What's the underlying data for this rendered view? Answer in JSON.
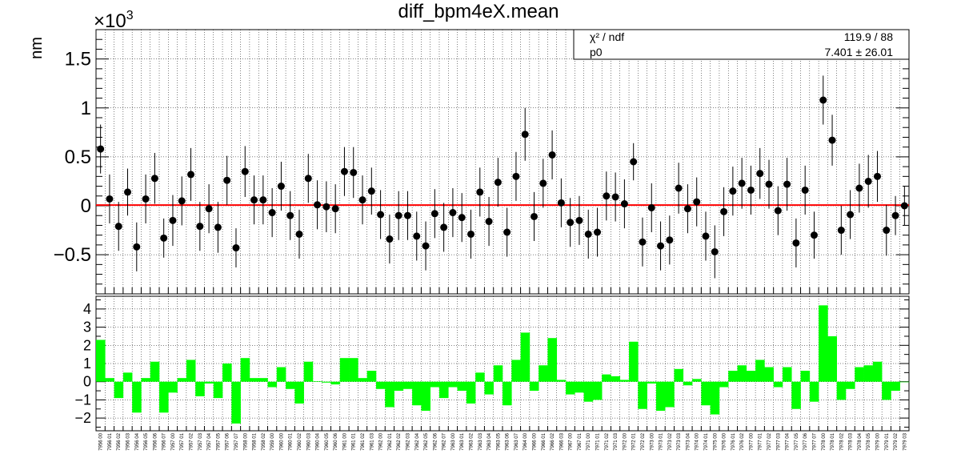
{
  "chart_data": [
    {
      "type": "scatter",
      "title": "diff_bpm4eX.mean",
      "ylabel": "nm",
      "y_multiplier": "×10",
      "y_multiplier_exp": "3",
      "ylim": [
        -0.9,
        1.8
      ],
      "yticks": [
        -0.5,
        0,
        0.5,
        1,
        1.5
      ],
      "ytick_labels": [
        "−0.5",
        "0",
        "0.5",
        "1",
        "1.5"
      ],
      "grid": true,
      "fit_line": {
        "value": 0.0074,
        "color": "#ff0000"
      },
      "stats_box": {
        "position": "top-right",
        "rows": [
          {
            "label": "χ² / ndf",
            "value": "119.9 / 88"
          },
          {
            "label": "p0",
            "value": "7.401 ± 26.01"
          }
        ]
      },
      "categories": [
        "7956_00",
        "7956_01",
        "7956_02",
        "7956_03",
        "7956_04",
        "7956_05",
        "7956_06",
        "7956_07",
        "7957_00",
        "7957_01",
        "7957_02",
        "7957_03",
        "7957_04",
        "7957_05",
        "7957_06",
        "7957_07",
        "7958_00",
        "7958_01",
        "7958_02",
        "7959_00",
        "7960_00",
        "7960_01",
        "7960_02",
        "7960_03",
        "7960_04",
        "7960_05",
        "7960_06",
        "7961_00",
        "7961_01",
        "7961_02",
        "7961_03",
        "7962_00",
        "7962_01",
        "7962_02",
        "7962_03",
        "7962_04",
        "7962_05",
        "7962_06",
        "7962_07",
        "7963_00",
        "7963_01",
        "7963_02",
        "7963_03",
        "7963_04",
        "7963_05",
        "7963_06",
        "7963_07",
        "7964_00",
        "7966_00",
        "7966_01",
        "7966_02",
        "7966_03",
        "7967_00",
        "7967_01",
        "7971_00",
        "7971_01",
        "7971_02",
        "7971_03",
        "7972_00",
        "7972_01",
        "7972_02",
        "7973_00",
        "7973_01",
        "7973_02",
        "7973_03",
        "7973_04",
        "7974_00",
        "7974_01",
        "7975_00",
        "7976_00",
        "7976_01",
        "7976_02",
        "7977_00",
        "7977_01",
        "7977_02",
        "7977_03",
        "7977_04",
        "7977_05",
        "7977_06",
        "7977_07",
        "7978_00",
        "7978_01",
        "7978_02",
        "7978_03",
        "7978_04",
        "7978_05",
        "7979_00",
        "7979_01",
        "7979_02",
        "7979_03"
      ],
      "values": [
        0.58,
        0.07,
        -0.21,
        0.14,
        -0.42,
        0.07,
        0.28,
        -0.33,
        -0.15,
        0.05,
        0.32,
        -0.21,
        -0.03,
        -0.22,
        0.26,
        -0.43,
        0.35,
        0.06,
        0.06,
        -0.07,
        0.2,
        -0.1,
        -0.29,
        0.28,
        0.01,
        -0.01,
        -0.03,
        0.35,
        0.34,
        0.06,
        0.15,
        -0.09,
        -0.34,
        -0.1,
        -0.1,
        -0.31,
        -0.41,
        -0.08,
        -0.22,
        -0.07,
        -0.12,
        -0.29,
        0.14,
        -0.16,
        0.24,
        -0.27,
        0.3,
        0.73,
        -0.11,
        0.23,
        0.52,
        0.03,
        -0.17,
        -0.15,
        -0.29,
        -0.27,
        0.1,
        0.09,
        0.02,
        0.45,
        -0.37,
        -0.02,
        -0.41,
        -0.35,
        0.18,
        -0.03,
        0.04,
        -0.31,
        -0.47,
        -0.06,
        0.15,
        0.23,
        0.16,
        0.33,
        0.22,
        -0.05,
        0.22,
        -0.38,
        0.16,
        -0.3,
        1.08,
        0.67,
        -0.25,
        -0.09,
        0.18,
        0.25,
        0.3,
        -0.25,
        -0.1,
        0
      ],
      "errors": [
        0.25,
        0.25,
        0.25,
        0.24,
        0.25,
        0.25,
        0.26,
        0.2,
        0.26,
        0.25,
        0.27,
        0.25,
        0.25,
        0.26,
        0.25,
        0.2,
        0.26,
        0.25,
        0.25,
        0.25,
        0.25,
        0.25,
        0.25,
        0.25,
        0.25,
        0.26,
        0.25,
        0.25,
        0.26,
        0.25,
        0.24,
        0.25,
        0.25,
        0.25,
        0.25,
        0.25,
        0.25,
        0.25,
        0.25,
        0.25,
        0.25,
        0.25,
        0.25,
        0.25,
        0.25,
        0.25,
        0.25,
        0.27,
        0.25,
        0.25,
        0.25,
        0.25,
        0.25,
        0.25,
        0.25,
        0.25,
        0.25,
        0.25,
        0.25,
        0.19,
        0.25,
        0.25,
        0.25,
        0.25,
        0.26,
        0.25,
        0.25,
        0.25,
        0.27,
        0.25,
        0.25,
        0.26,
        0.25,
        0.26,
        0.25,
        0.25,
        0.27,
        0.25,
        0.25,
        0.24,
        0.25,
        0.26,
        0.25,
        0.25,
        0.25,
        0.27,
        0.26,
        0.26,
        0.2,
        0.2
      ]
    },
    {
      "type": "bar",
      "ylim": [
        -2.7,
        4.7
      ],
      "yticks": [
        -2,
        -1,
        0,
        1,
        2,
        3,
        4
      ],
      "ytick_labels": [
        "−2",
        "−1",
        "0",
        "1",
        "2",
        "3",
        "4"
      ],
      "grid": true,
      "bar_color": "#00ff00",
      "values": [
        2.3,
        0.2,
        -0.9,
        0.5,
        -1.7,
        0.2,
        1.1,
        -1.7,
        -0.6,
        0.2,
        1.2,
        -0.8,
        -0.1,
        -0.9,
        1.0,
        -2.3,
        1.3,
        0.2,
        0.2,
        -0.3,
        0.8,
        -0.4,
        -1.2,
        1.1,
        0.03,
        -0.05,
        -0.15,
        1.3,
        1.3,
        0.2,
        0.6,
        -0.4,
        -1.4,
        -0.5,
        -0.4,
        -1.3,
        -1.6,
        -0.3,
        -0.9,
        -0.3,
        -0.5,
        -1.2,
        0.5,
        -0.7,
        0.9,
        -1.3,
        1.2,
        2.7,
        -0.5,
        0.9,
        2.4,
        0.1,
        -0.7,
        -0.6,
        -1.1,
        -1.0,
        0.4,
        0.3,
        0.1,
        2.2,
        -1.5,
        -0.1,
        -1.6,
        -1.4,
        0.7,
        -0.2,
        0.15,
        -1.3,
        -1.8,
        -0.3,
        0.6,
        0.9,
        0.6,
        1.2,
        0.8,
        -0.3,
        0.8,
        -1.5,
        0.6,
        -1.1,
        4.2,
        2.5,
        -1.0,
        -0.4,
        0.8,
        0.9,
        1.1,
        -1.0,
        -0.5,
        0
      ]
    }
  ]
}
